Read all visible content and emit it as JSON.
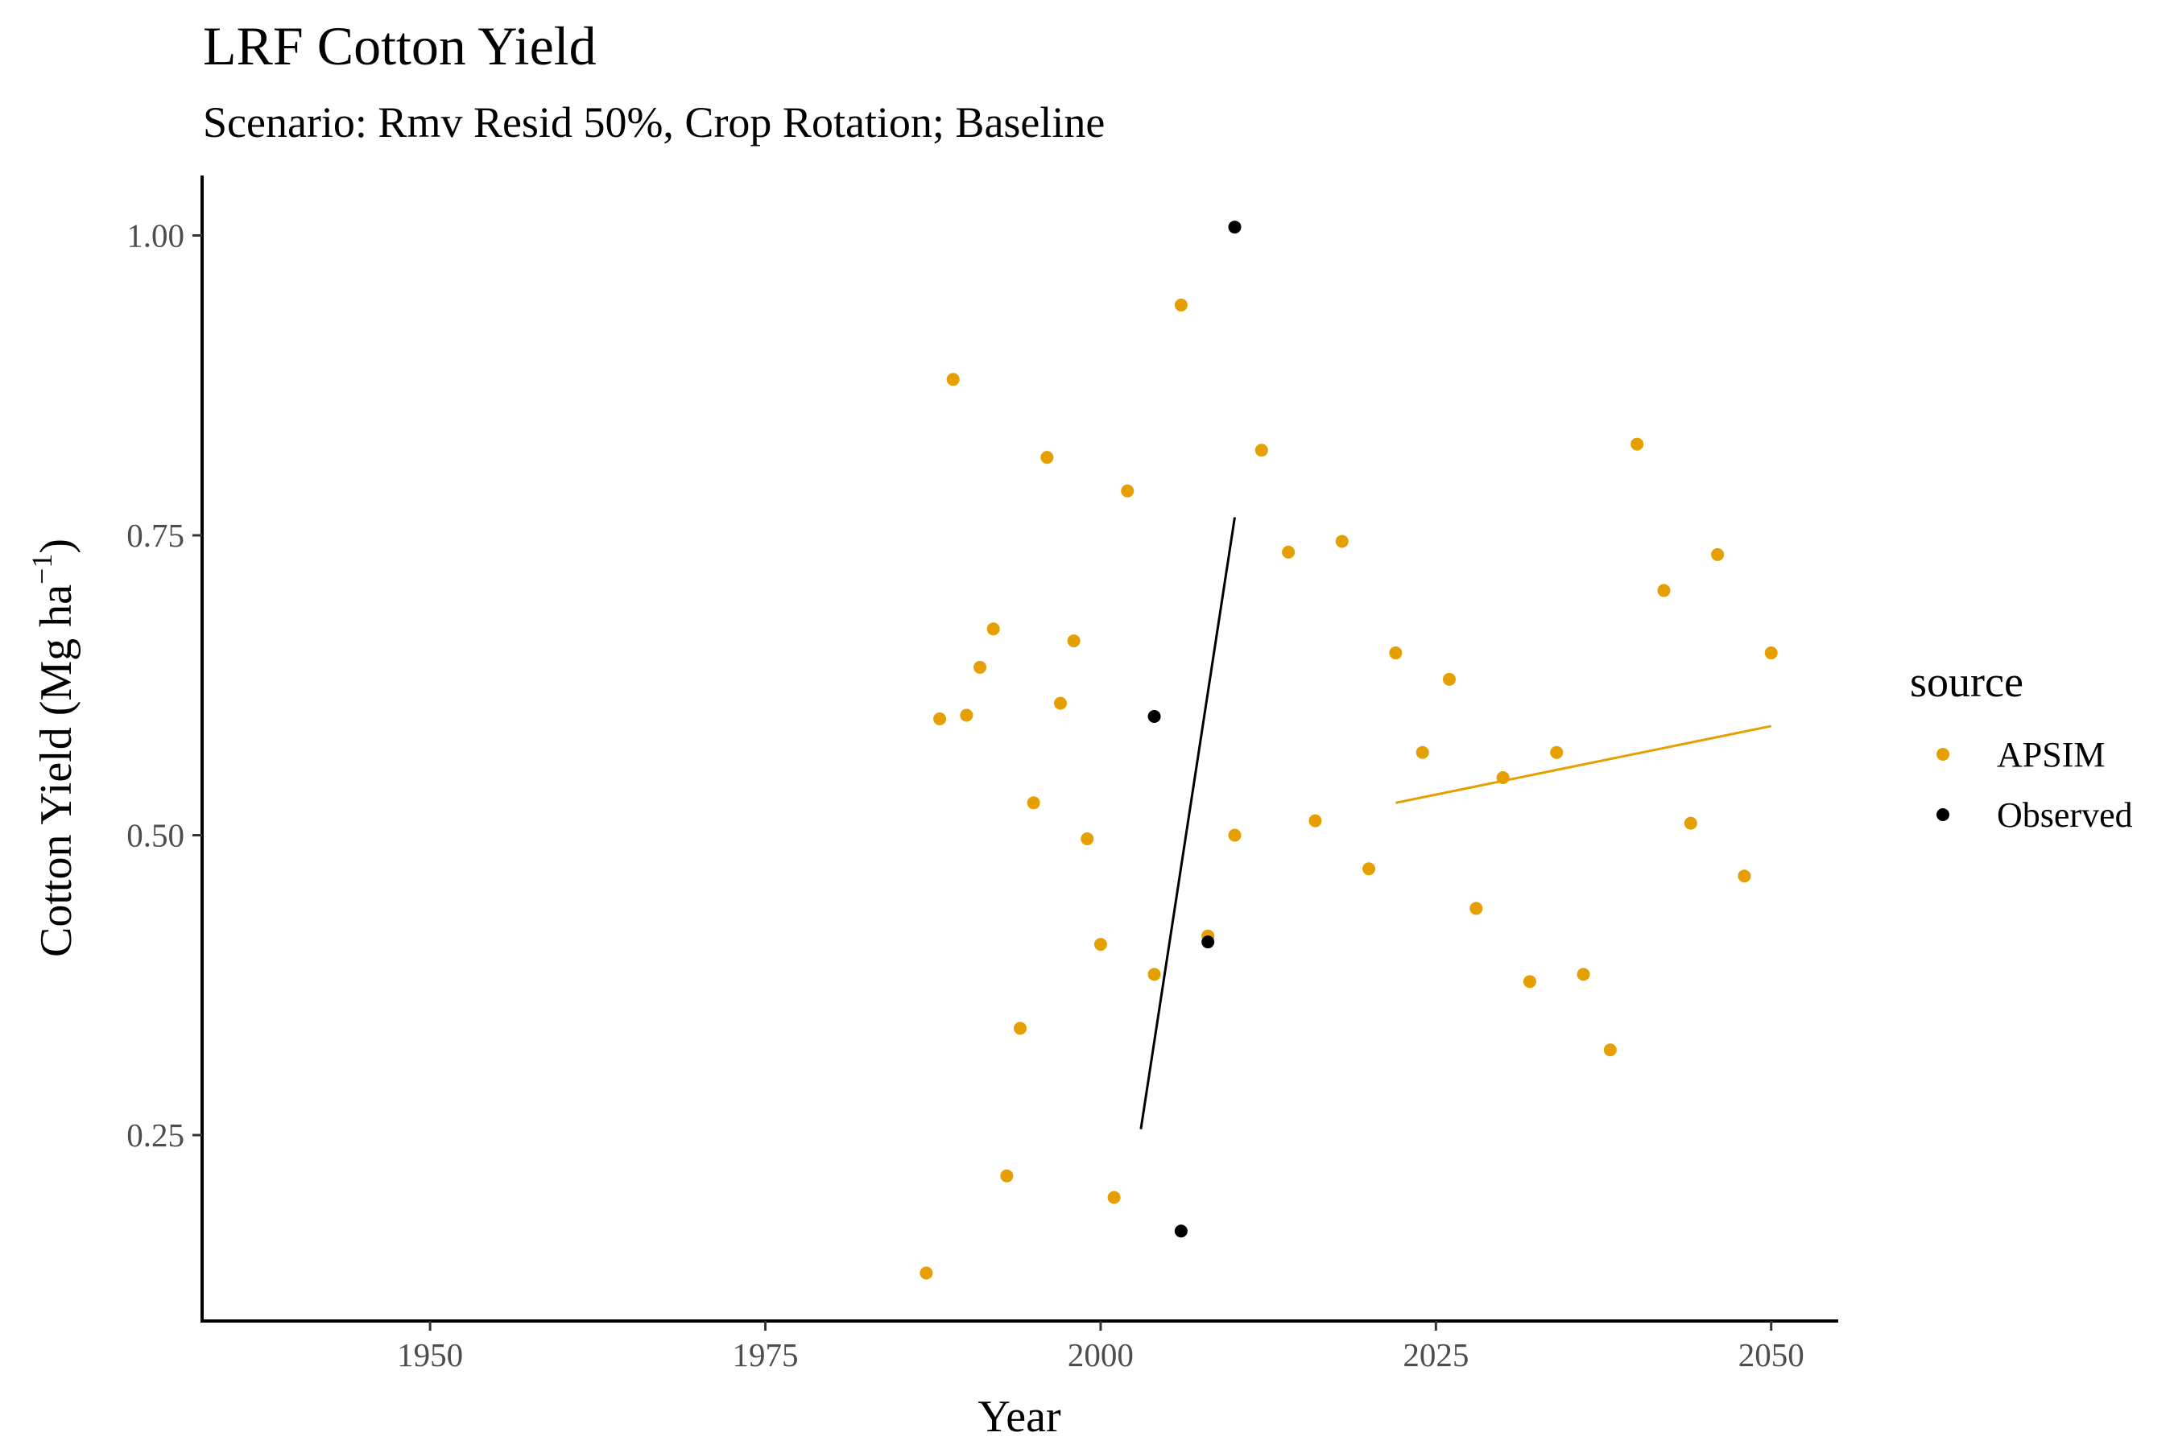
{
  "chart_data": {
    "type": "scatter",
    "title": "LRF Cotton Yield",
    "subtitle": "Scenario: Rmv Resid 50%, Crop Rotation; Baseline",
    "xlabel": "Year",
    "ylabel_main": "Cotton Yield (Mg ha",
    "ylabel_sup": "−1",
    "ylabel_close": ")",
    "xlim": [
      1933,
      2055
    ],
    "ylim": [
      0.095,
      1.05
    ],
    "x_ticks": [
      1950,
      1975,
      2000,
      2025,
      2050
    ],
    "x_tick_labels": [
      "1950",
      "1975",
      "2000",
      "2025",
      "2050"
    ],
    "y_ticks": [
      0.25,
      0.5,
      0.75,
      1.0
    ],
    "y_tick_labels": [
      "0.25",
      "0.50",
      "0.75",
      "1.00"
    ],
    "grid": false,
    "legend": {
      "title": "source",
      "position": "right",
      "entries": [
        {
          "label": "APSIM",
          "color": "#E69F00"
        },
        {
          "label": "Observed",
          "color": "#000000"
        }
      ]
    },
    "series": [
      {
        "name": "APSIM",
        "color": "#E69F00",
        "points": [
          [
            1987,
            0.135
          ],
          [
            1988,
            0.597
          ],
          [
            1989,
            0.88
          ],
          [
            1990,
            0.6
          ],
          [
            1991,
            0.64
          ],
          [
            1992,
            0.672
          ],
          [
            1993,
            0.216
          ],
          [
            1994,
            0.339
          ],
          [
            1995,
            0.527
          ],
          [
            1996,
            0.815
          ],
          [
            1997,
            0.61
          ],
          [
            1998,
            0.662
          ],
          [
            1999,
            0.497
          ],
          [
            2000,
            0.409
          ],
          [
            2001,
            0.198
          ],
          [
            2002,
            0.787
          ],
          [
            2004,
            0.384
          ],
          [
            2006,
            0.942
          ],
          [
            2008,
            0.416
          ],
          [
            2010,
            0.5
          ],
          [
            2012,
            0.821
          ],
          [
            2014,
            0.736
          ],
          [
            2016,
            0.512
          ],
          [
            2018,
            0.745
          ],
          [
            2020,
            0.472
          ],
          [
            2022,
            0.652
          ],
          [
            2024,
            0.569
          ],
          [
            2026,
            0.63
          ],
          [
            2028,
            0.439
          ],
          [
            2030,
            0.548
          ],
          [
            2032,
            0.378
          ],
          [
            2034,
            0.569
          ],
          [
            2036,
            0.384
          ],
          [
            2038,
            0.321
          ],
          [
            2040,
            0.826
          ],
          [
            2042,
            0.704
          ],
          [
            2044,
            0.51
          ],
          [
            2046,
            0.734
          ],
          [
            2048,
            0.466
          ],
          [
            2050,
            0.652
          ]
        ],
        "trend": [
          [
            2022,
            0.527
          ],
          [
            2050,
            0.591
          ]
        ]
      },
      {
        "name": "Observed",
        "color": "#000000",
        "points": [
          [
            2004,
            0.599
          ],
          [
            2006,
            0.17
          ],
          [
            2008,
            0.411
          ],
          [
            2010,
            1.007
          ]
        ],
        "trend": [
          [
            2003,
            0.255
          ],
          [
            2010,
            0.765
          ]
        ]
      }
    ]
  }
}
